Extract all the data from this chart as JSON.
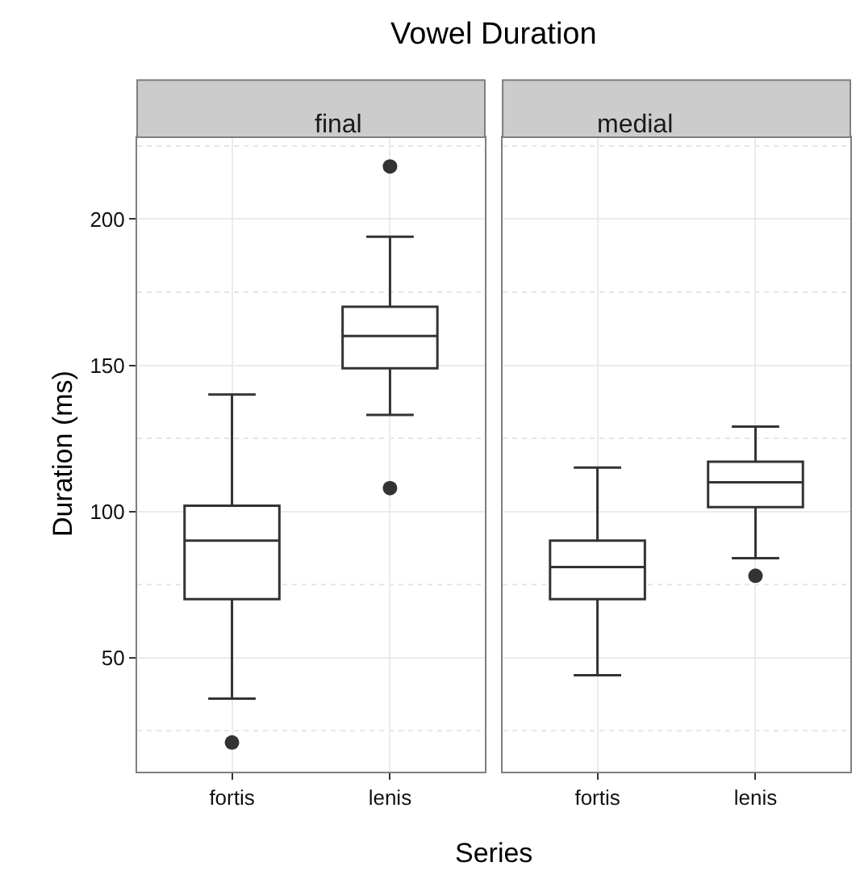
{
  "chart_data": [
    {
      "type": "box",
      "title": "Vowel Duration",
      "subtitle": "final",
      "xlabel": "Series",
      "ylabel": "Duration (ms)",
      "categories": [
        "fortis",
        "lenis"
      ],
      "ylim": [
        11,
        228
      ],
      "yticks": [
        50,
        100,
        150,
        200
      ],
      "grid": true,
      "series": [
        {
          "color": "#333333",
          "boxes": [
            {
              "low": 36,
              "q1": 70,
              "median": 90,
              "q3": 102,
              "high": 140,
              "outliers": [
                21
              ]
            },
            {
              "low": 133,
              "q1": 149,
              "median": 160,
              "q3": 170,
              "high": 194,
              "outliers": [
                218,
                108
              ]
            }
          ]
        }
      ]
    },
    {
      "type": "box",
      "subtitle": "medial",
      "categories": [
        "fortis",
        "lenis"
      ],
      "ylim": [
        11,
        228
      ],
      "yticks": [
        50,
        100,
        150,
        200
      ],
      "grid": true,
      "tick_labels": "x",
      "series": [
        {
          "color": "#333333",
          "boxes": [
            {
              "low": 44,
              "q1": 70,
              "median": 81,
              "q3": 90,
              "high": 115
            },
            {
              "low": 84,
              "q1": 101.5,
              "median": 110,
              "q3": 117,
              "high": 129,
              "outliers": [
                78
              ]
            }
          ]
        }
      ]
    }
  ]
}
